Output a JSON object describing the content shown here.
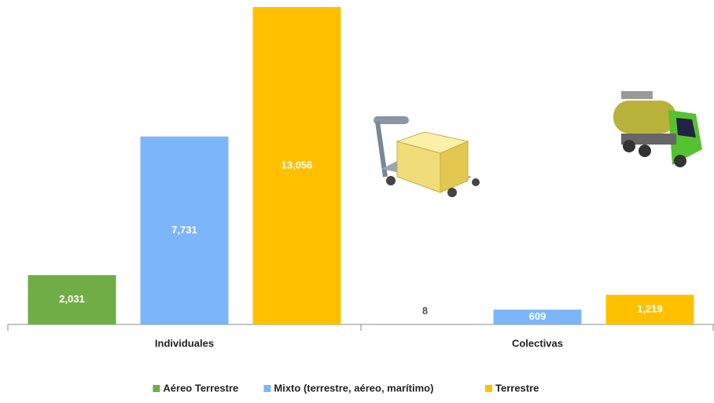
{
  "chart_data": {
    "type": "bar",
    "categories": [
      "Individuales",
      "Colectivas"
    ],
    "series": [
      {
        "name": "Aéreo Terrestre",
        "color": "#70ad47",
        "values": [
          2031,
          8
        ],
        "value_labels": [
          "2,031",
          "8"
        ]
      },
      {
        "name": "Mixto (terrestre, aéreo, marítimo)",
        "color": "#7cb5fa",
        "values": [
          7731,
          609
        ],
        "value_labels": [
          "7,731",
          "609"
        ]
      },
      {
        "name": "Terrestre",
        "color": "#ffc000",
        "values": [
          13056,
          1219
        ],
        "value_labels": [
          "13,056",
          "1,219"
        ]
      }
    ],
    "legend": "bottom"
  }
}
